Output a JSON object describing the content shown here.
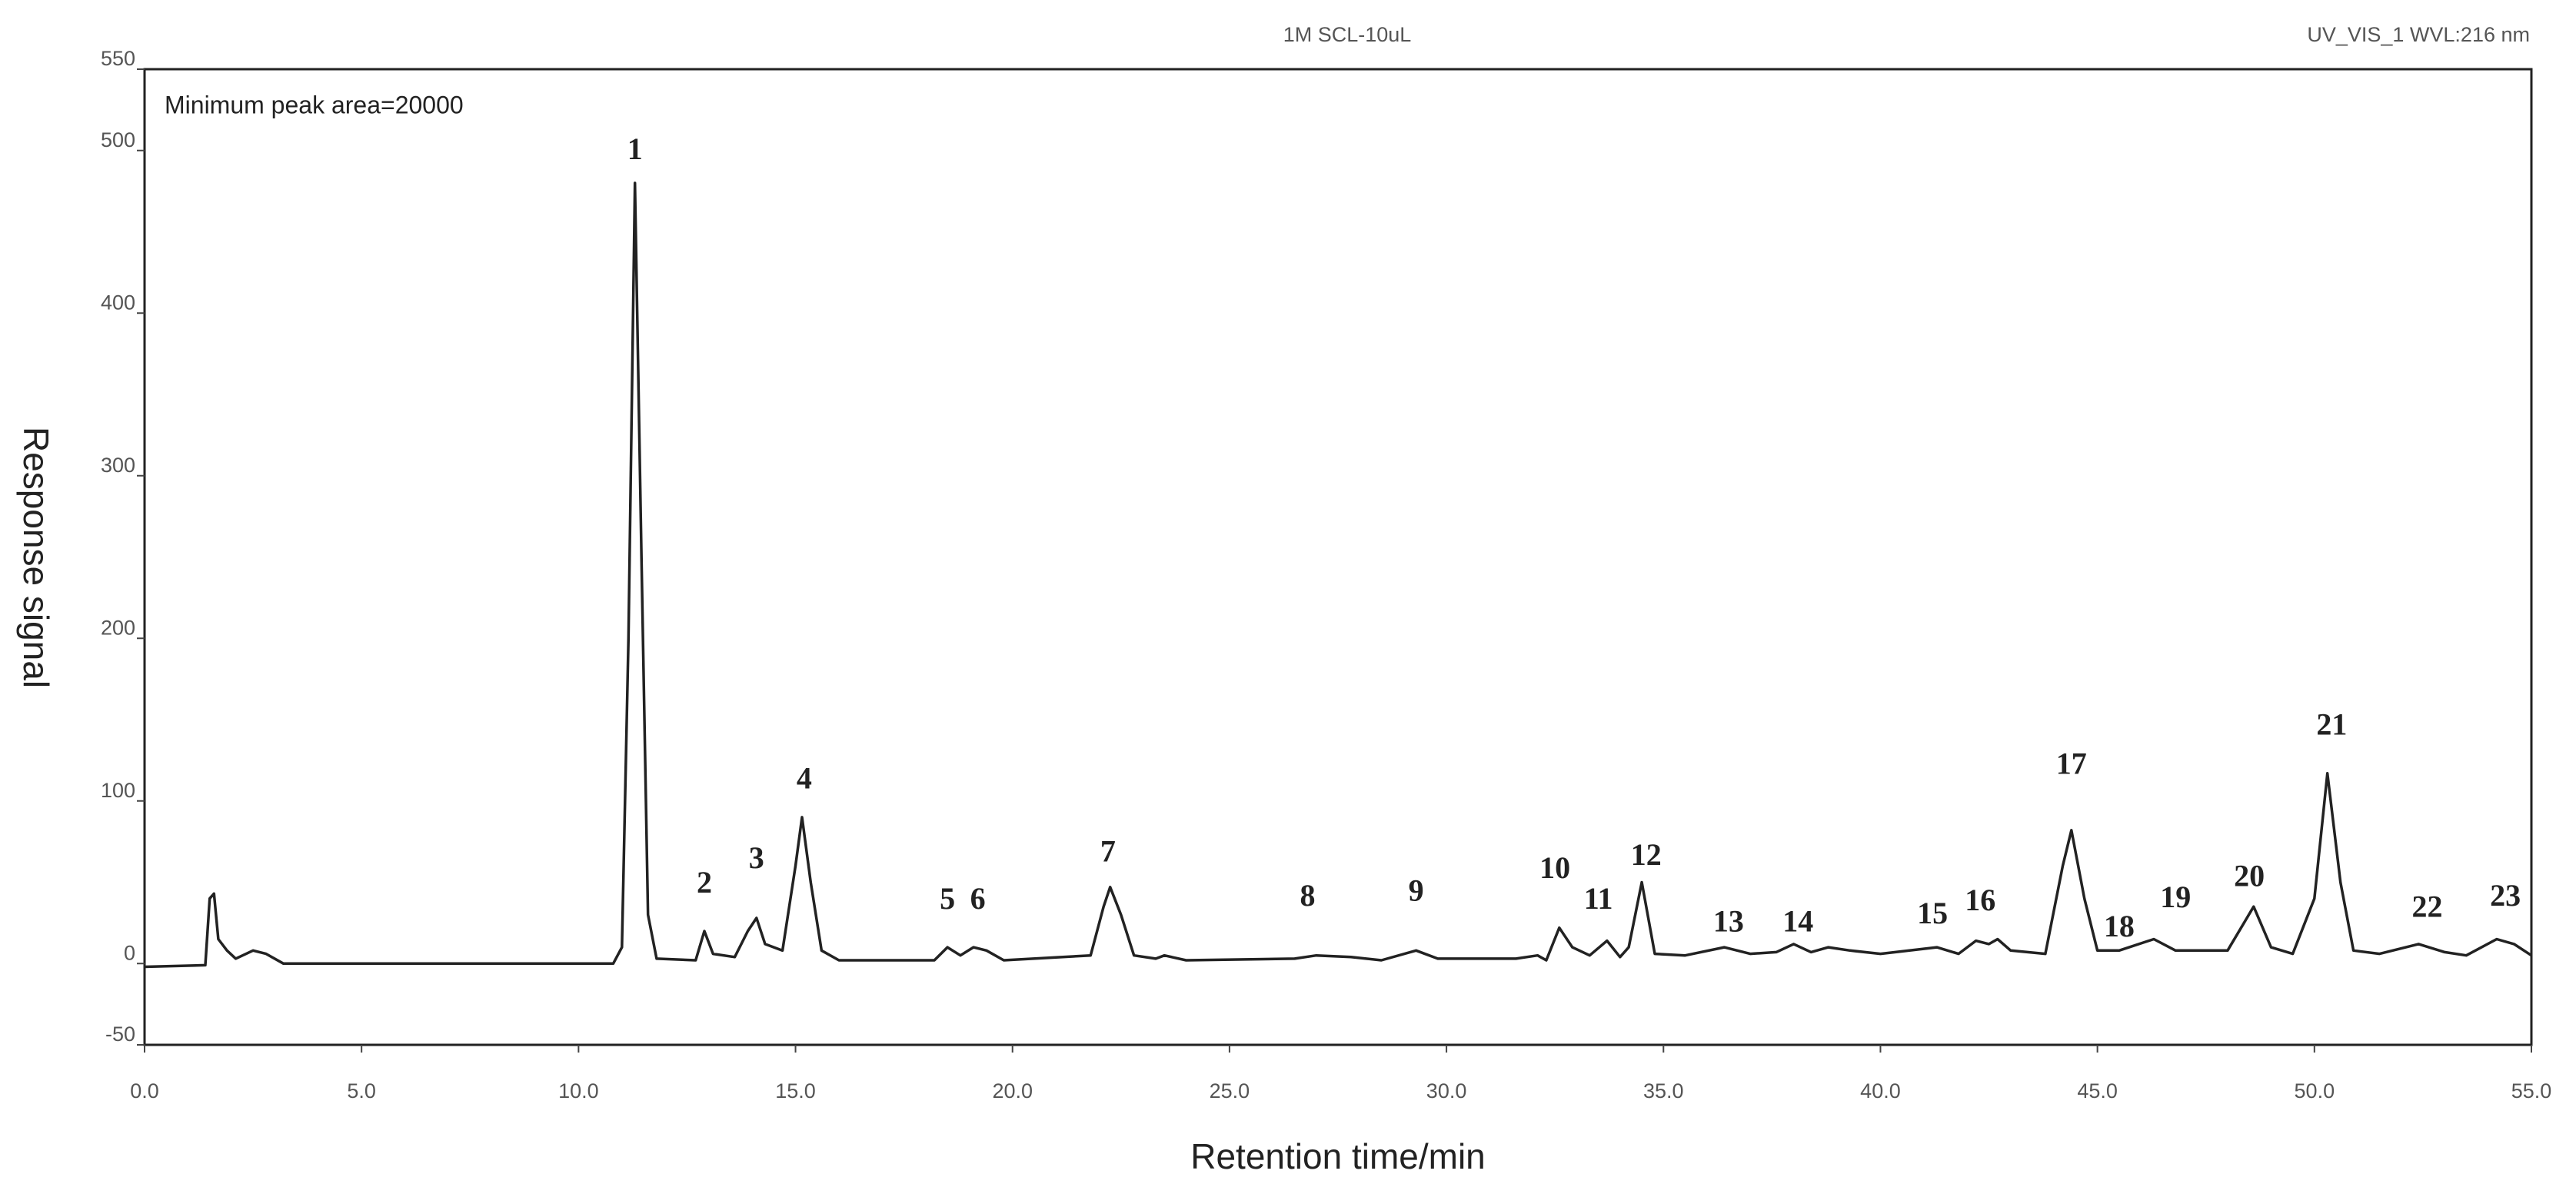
{
  "chart_data": {
    "type": "line",
    "title": "1M SCL-10uL",
    "subtitle": "UV_VIS_1 WVL:216 nm",
    "note": "Minimum peak area=20000",
    "x_label": "Retention time/min",
    "y_label": "Response signal",
    "color": "#222222",
    "x": [
      0,
      1.4,
      1.5,
      1.6,
      1.7,
      1.9,
      2.1,
      2.5,
      2.8,
      3.2,
      5,
      10.8,
      11.0,
      11.15,
      11.3,
      11.45,
      11.6,
      11.8,
      12.7,
      12.9,
      13.1,
      13.6,
      13.9,
      14.1,
      14.3,
      14.7,
      15.0,
      15.15,
      15.35,
      15.6,
      16,
      18.2,
      18.5,
      18.8,
      19.1,
      19.4,
      19.8,
      21.8,
      22.1,
      22.25,
      22.5,
      22.8,
      23.3,
      23.5,
      24,
      26.5,
      27,
      27.8,
      28.5,
      29.3,
      29.8,
      31.6,
      32.1,
      32.3,
      32.6,
      32.9,
      33.3,
      33.7,
      34,
      34.2,
      34.5,
      34.8,
      35.5,
      36.4,
      37,
      37.6,
      38,
      38.4,
      38.8,
      39.3,
      40,
      41.3,
      41.8,
      42.2,
      42.5,
      42.7,
      43,
      43.8,
      44.2,
      44.4,
      44.7,
      45.0,
      45.5,
      46.3,
      46.8,
      48,
      48.6,
      49.0,
      49.5,
      50.0,
      50.3,
      50.6,
      50.9,
      51.5,
      52.4,
      53,
      53.5,
      54.2,
      54.6,
      55
    ],
    "values": [
      -2,
      -1,
      40,
      43,
      15,
      8,
      3,
      8,
      6,
      0,
      0,
      0,
      10,
      200,
      480,
      250,
      30,
      3,
      2,
      20,
      6,
      4,
      20,
      28,
      12,
      8,
      60,
      90,
      50,
      8,
      2,
      2,
      10,
      5,
      10,
      8,
      2,
      5,
      35,
      47,
      30,
      5,
      3,
      5,
      2,
      3,
      5,
      4,
      2,
      8,
      3,
      3,
      5,
      2,
      22,
      10,
      5,
      14,
      4,
      10,
      50,
      6,
      5,
      10,
      6,
      7,
      12,
      7,
      10,
      8,
      6,
      10,
      6,
      14,
      12,
      15,
      8,
      6,
      60,
      82,
      40,
      8,
      8,
      15,
      8,
      8,
      35,
      10,
      6,
      40,
      117,
      50,
      8,
      6,
      12,
      7,
      5,
      15,
      12,
      5
    ],
    "xlim": [
      0,
      55
    ],
    "ylim": [
      -50,
      550
    ],
    "xticks": [
      {
        "value": 0,
        "label": "0.0"
      },
      {
        "value": 5,
        "label": "5.0"
      },
      {
        "value": 10,
        "label": "10.0"
      },
      {
        "value": 15,
        "label": "15.0"
      },
      {
        "value": 20,
        "label": "20.0"
      },
      {
        "value": 25,
        "label": "25.0"
      },
      {
        "value": 30,
        "label": "30.0"
      },
      {
        "value": 35,
        "label": "35.0"
      },
      {
        "value": 40,
        "label": "40.0"
      },
      {
        "value": 45,
        "label": "45.0"
      },
      {
        "value": 50,
        "label": "50.0"
      },
      {
        "value": 55,
        "label": "55.0"
      }
    ],
    "yticks": [
      -50,
      0,
      100,
      200,
      300,
      400,
      500,
      550
    ],
    "annotations": [
      {
        "text": "1",
        "x": 11.3,
        "y": 499
      },
      {
        "text": "2",
        "x": 12.9,
        "y": 48
      },
      {
        "text": "3",
        "x": 14.1,
        "y": 63
      },
      {
        "text": "4",
        "x": 15.2,
        "y": 112
      },
      {
        "text": "5",
        "x": 18.5,
        "y": 38
      },
      {
        "text": "6",
        "x": 19.2,
        "y": 38
      },
      {
        "text": "7",
        "x": 22.2,
        "y": 67
      },
      {
        "text": "8",
        "x": 26.8,
        "y": 40
      },
      {
        "text": "9",
        "x": 29.3,
        "y": 43
      },
      {
        "text": "10",
        "x": 32.5,
        "y": 57
      },
      {
        "text": "11",
        "x": 33.5,
        "y": 38
      },
      {
        "text": "12",
        "x": 34.6,
        "y": 65
      },
      {
        "text": "13",
        "x": 36.5,
        "y": 24
      },
      {
        "text": "14",
        "x": 38.1,
        "y": 24
      },
      {
        "text": "15",
        "x": 41.2,
        "y": 29
      },
      {
        "text": "16",
        "x": 42.3,
        "y": 37
      },
      {
        "text": "17",
        "x": 44.4,
        "y": 121
      },
      {
        "text": "18",
        "x": 45.5,
        "y": 21
      },
      {
        "text": "19",
        "x": 46.8,
        "y": 39
      },
      {
        "text": "20",
        "x": 48.5,
        "y": 52
      },
      {
        "text": "21",
        "x": 50.4,
        "y": 145
      },
      {
        "text": "22",
        "x": 52.6,
        "y": 33
      },
      {
        "text": "23",
        "x": 54.4,
        "y": 40
      }
    ]
  }
}
